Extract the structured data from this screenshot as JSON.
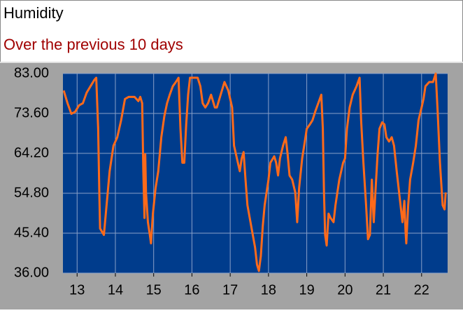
{
  "chart_data": {
    "type": "line",
    "title": "Humidity",
    "subtitle": "Over the previous 10 days",
    "x": [
      12.65,
      12.75,
      12.85,
      12.95,
      13.05,
      13.15,
      13.25,
      13.35,
      13.45,
      13.5,
      13.55,
      13.58,
      13.6,
      13.7,
      13.75,
      13.85,
      13.95,
      14.05,
      14.15,
      14.25,
      14.35,
      14.5,
      14.55,
      14.6,
      14.65,
      14.7,
      14.73,
      14.76,
      14.78,
      14.8,
      14.85,
      14.9,
      14.93,
      14.98,
      15.05,
      15.12,
      15.2,
      15.28,
      15.35,
      15.42,
      15.5,
      15.58,
      15.65,
      15.7,
      15.75,
      15.8,
      15.85,
      15.9,
      15.95,
      16.05,
      16.15,
      16.22,
      16.28,
      16.35,
      16.42,
      16.5,
      16.6,
      16.65,
      16.75,
      16.85,
      16.95,
      17.0,
      17.05,
      17.1,
      17.2,
      17.25,
      17.3,
      17.35,
      17.4,
      17.45,
      17.55,
      17.65,
      17.7,
      17.75,
      17.8,
      17.85,
      17.9,
      18.0,
      18.05,
      18.15,
      18.2,
      18.25,
      18.3,
      18.38,
      18.45,
      18.5,
      18.55,
      18.62,
      18.7,
      18.75,
      18.8,
      18.88,
      18.95,
      19.0,
      19.08,
      19.15,
      19.22,
      19.3,
      19.38,
      19.42,
      19.45,
      19.48,
      19.52,
      19.57,
      19.62,
      19.7,
      19.75,
      19.85,
      19.95,
      20.0,
      20.05,
      20.12,
      20.2,
      20.3,
      20.38,
      20.42,
      20.48,
      20.55,
      20.6,
      20.65,
      20.7,
      20.75,
      20.8,
      20.85,
      20.9,
      20.97,
      21.03,
      21.08,
      21.15,
      21.22,
      21.28,
      21.35,
      21.45,
      21.5,
      21.55,
      21.58,
      21.6,
      21.65,
      21.7,
      21.78,
      21.85,
      21.92,
      22.0,
      22.05,
      22.1,
      22.2,
      22.3,
      22.37,
      22.42,
      22.48,
      22.55,
      22.6,
      22.63
    ],
    "values": [
      79,
      76,
      73.5,
      74,
      75.5,
      76,
      78.5,
      80,
      81.5,
      82,
      70,
      55,
      46.5,
      45,
      50,
      60,
      66,
      68,
      72,
      77,
      77.5,
      77.5,
      77,
      76.5,
      77.5,
      76,
      60,
      49,
      64,
      55,
      48,
      45,
      43,
      50,
      56,
      60,
      68,
      73,
      76,
      78,
      80,
      81,
      82,
      70,
      62,
      62,
      71,
      78,
      82,
      82,
      82,
      80,
      76,
      75,
      76,
      78,
      75,
      75,
      78,
      81,
      79,
      77,
      75,
      66,
      62,
      60,
      63,
      64.5,
      58,
      52,
      47,
      42,
      38,
      36.5,
      40,
      47,
      52,
      58,
      62,
      63.5,
      62,
      59,
      63,
      66,
      68,
      64,
      59,
      58,
      55,
      48,
      56,
      63,
      67,
      70,
      71,
      72,
      74,
      76,
      78,
      70,
      55,
      45,
      42.5,
      50,
      49,
      48,
      52,
      58,
      62,
      63,
      70,
      75,
      78,
      80,
      82,
      72,
      62,
      52,
      44,
      45,
      58,
      48,
      56,
      64,
      70,
      71.5,
      71,
      68,
      67,
      68,
      66,
      60,
      52,
      48,
      53,
      46,
      43,
      52,
      58,
      62,
      66,
      72,
      75,
      77,
      80,
      81,
      81,
      83,
      74,
      62,
      52,
      51,
      55
    ],
    "color": "#ff6a1a",
    "xlim": [
      12.63,
      22.68
    ],
    "ylim": [
      36,
      83
    ],
    "xticks": [
      13,
      14,
      15,
      16,
      17,
      18,
      19,
      20,
      21,
      22
    ],
    "yticks": [
      {
        "value": 36,
        "label": "36.00"
      },
      {
        "value": 45.4,
        "label": "45.40"
      },
      {
        "value": 54.8,
        "label": "54.80"
      },
      {
        "value": 64.2,
        "label": "64.20"
      },
      {
        "value": 73.6,
        "label": "73.60"
      },
      {
        "value": 83,
        "label": "83.00"
      }
    ],
    "grid": true
  }
}
